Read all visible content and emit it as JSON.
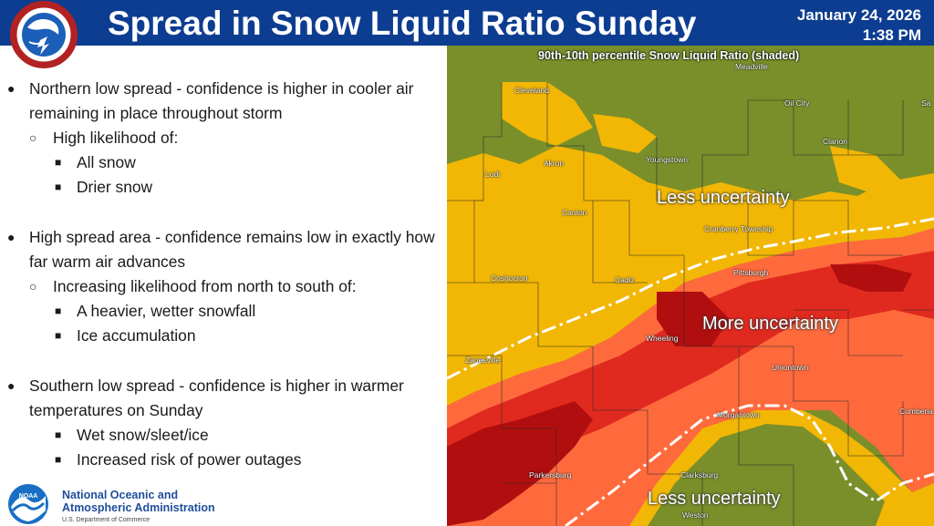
{
  "header": {
    "title": "Spread in Snow Liquid Ratio Sunday",
    "date": "January 24, 2026",
    "time": "1:38 PM",
    "logo_text": "NATIONAL WEATHER SERVICE"
  },
  "bullets": {
    "north": {
      "text": "Northern low spread - confidence is higher in cooler air remaining in place throughout storm",
      "sub": "High likelihood of:",
      "items": [
        "All snow",
        "Drier snow"
      ]
    },
    "high": {
      "text": "High spread area - confidence remains low in exactly how far warm air advances",
      "sub": "Increasing likelihood from north to south of:",
      "items": [
        "A heavier, wetter snowfall",
        "Ice accumulation"
      ]
    },
    "south": {
      "text": "Southern low spread - confidence is higher in warmer temperatures on Sunday",
      "items": [
        "Wet snow/sleet/ice",
        "Increased risk of power outages"
      ]
    }
  },
  "noaa": {
    "logo_text": "NOAA",
    "name_line1": "National Oceanic and",
    "name_line2": "Atmospheric Administration",
    "dept": "U.S. Department of Commerce"
  },
  "map": {
    "title": "90th-10th percentile Snow Liquid Ratio (shaded)",
    "labels": {
      "less_north": "Less uncertainty",
      "more": "More uncertainty",
      "less_south": "Less uncertainty"
    },
    "cities": {
      "cleveland": "Cleveland",
      "meadville": "Meadville",
      "oilcity": "Oil City",
      "clarion": "Clarion",
      "akron": "Akron",
      "lodi": "Lodi",
      "youngstown": "Youngstown",
      "canton": "Canton",
      "cranberry": "Cranberry Township",
      "pittsburgh": "Pittsburgh",
      "coshocton": "Coshocton",
      "cadiz": "Cadiz",
      "wheeling": "Wheeling",
      "zanesville": "Zanesville",
      "uniontown": "Uniontown",
      "morgantown": "Morgantown",
      "cumberland": "Cumberla",
      "parkersburg": "Parkersburg",
      "clarksburg": "Clarksburg",
      "weston": "Weston",
      "sa": "Sa"
    },
    "colors": {
      "green": "#7a8f2a",
      "yellow": "#f2b705",
      "orange": "#ff6a3d",
      "red": "#d61c1c",
      "darkred": "#b10f0f"
    }
  }
}
